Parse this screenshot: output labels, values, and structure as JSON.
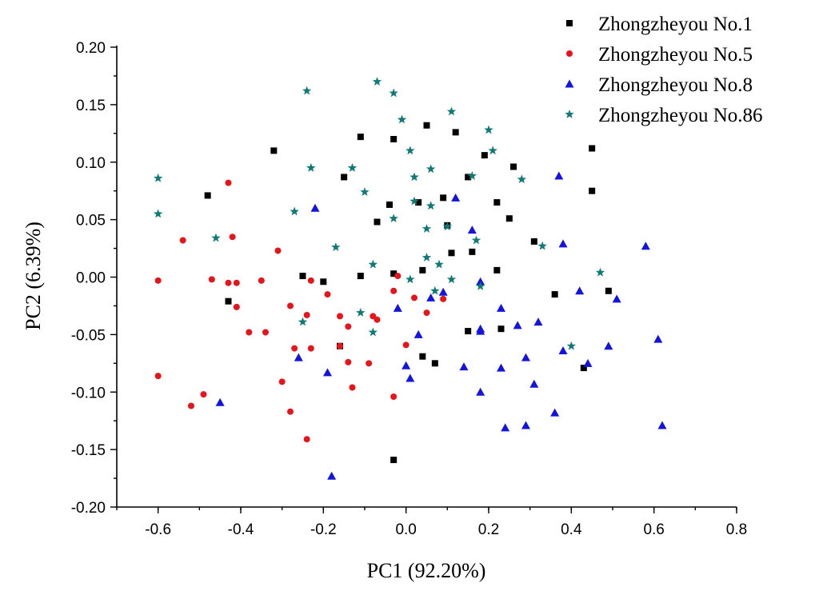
{
  "chart_data": {
    "type": "scatter",
    "xlabel": "PC1 (92.20%)",
    "ylabel": "PC2 (6.39%)",
    "xlim": [
      -0.7,
      0.8
    ],
    "ylim": [
      -0.2,
      0.2
    ],
    "xticks": [
      -0.6,
      -0.4,
      -0.2,
      0.0,
      0.2,
      0.4,
      0.6,
      0.8
    ],
    "xtick_labels": [
      "-0.6",
      "-0.4",
      "-0.2",
      "0.0",
      "0.2",
      "0.4",
      "0.6",
      "0.8"
    ],
    "yticks": [
      -0.2,
      -0.15,
      -0.1,
      -0.05,
      0.0,
      0.05,
      0.1,
      0.15,
      0.2
    ],
    "ytick_labels": [
      "-0.20",
      "-0.15",
      "-0.10",
      "-0.05",
      "0.00",
      "0.05",
      "0.10",
      "0.15",
      "0.20"
    ],
    "grid": false,
    "legend_position": "top-right",
    "series": [
      {
        "name": "Zhongzheyou No.1",
        "marker": "square",
        "color": "#000000",
        "points": [
          [
            -0.48,
            0.071
          ],
          [
            -0.43,
            -0.021
          ],
          [
            -0.32,
            0.11
          ],
          [
            -0.25,
            0.001
          ],
          [
            -0.2,
            -0.004
          ],
          [
            -0.16,
            -0.06
          ],
          [
            -0.15,
            0.087
          ],
          [
            -0.11,
            0.001
          ],
          [
            -0.11,
            0.122
          ],
          [
            -0.07,
            0.048
          ],
          [
            -0.04,
            0.063
          ],
          [
            -0.03,
            0.12
          ],
          [
            -0.03,
            0.003
          ],
          [
            -0.03,
            -0.159
          ],
          [
            0.03,
            0.065
          ],
          [
            0.04,
            -0.069
          ],
          [
            0.04,
            0.006
          ],
          [
            0.05,
            0.132
          ],
          [
            0.07,
            -0.075
          ],
          [
            0.09,
            0.069
          ],
          [
            0.1,
            0.045
          ],
          [
            0.11,
            0.021
          ],
          [
            0.12,
            0.126
          ],
          [
            0.15,
            0.087
          ],
          [
            0.15,
            -0.047
          ],
          [
            0.16,
            0.022
          ],
          [
            0.19,
            0.106
          ],
          [
            0.22,
            0.065
          ],
          [
            0.22,
            0.006
          ],
          [
            0.23,
            -0.045
          ],
          [
            0.25,
            0.051
          ],
          [
            0.26,
            0.096
          ],
          [
            0.31,
            0.031
          ],
          [
            0.36,
            -0.015
          ],
          [
            0.43,
            -0.079
          ],
          [
            0.45,
            0.075
          ],
          [
            0.45,
            0.112
          ],
          [
            0.49,
            -0.012
          ]
        ]
      },
      {
        "name": "Zhongzheyou No.5",
        "marker": "circle",
        "color": "#e8141c",
        "points": [
          [
            -0.6,
            -0.003
          ],
          [
            -0.6,
            -0.086
          ],
          [
            -0.54,
            0.032
          ],
          [
            -0.52,
            -0.112
          ],
          [
            -0.49,
            -0.102
          ],
          [
            -0.47,
            -0.002
          ],
          [
            -0.43,
            -0.005
          ],
          [
            -0.43,
            0.082
          ],
          [
            -0.42,
            0.035
          ],
          [
            -0.41,
            -0.005
          ],
          [
            -0.41,
            -0.026
          ],
          [
            -0.38,
            -0.048
          ],
          [
            -0.35,
            -0.003
          ],
          [
            -0.34,
            -0.048
          ],
          [
            -0.31,
            0.023
          ],
          [
            -0.3,
            -0.091
          ],
          [
            -0.28,
            -0.025
          ],
          [
            -0.28,
            -0.117
          ],
          [
            -0.27,
            -0.062
          ],
          [
            -0.24,
            -0.033
          ],
          [
            -0.24,
            -0.141
          ],
          [
            -0.23,
            -0.003
          ],
          [
            -0.23,
            -0.062
          ],
          [
            -0.19,
            -0.015
          ],
          [
            -0.16,
            -0.034
          ],
          [
            -0.16,
            -0.06
          ],
          [
            -0.14,
            -0.043
          ],
          [
            -0.14,
            -0.074
          ],
          [
            -0.13,
            -0.096
          ],
          [
            -0.09,
            -0.075
          ],
          [
            -0.08,
            -0.034
          ],
          [
            -0.07,
            -0.037
          ],
          [
            -0.03,
            -0.012
          ],
          [
            -0.03,
            -0.104
          ],
          [
            -0.02,
            0.001
          ],
          [
            0.0,
            -0.059
          ],
          [
            0.02,
            -0.018
          ],
          [
            0.05,
            -0.031
          ],
          [
            0.09,
            -0.019
          ]
        ]
      },
      {
        "name": "Zhongzheyou No.8",
        "marker": "triangle",
        "color": "#1414e0",
        "points": [
          [
            -0.45,
            -0.109
          ],
          [
            -0.26,
            -0.07
          ],
          [
            -0.22,
            0.06
          ],
          [
            -0.19,
            -0.083
          ],
          [
            -0.18,
            -0.173
          ],
          [
            -0.02,
            -0.027
          ],
          [
            0.0,
            -0.077
          ],
          [
            0.01,
            -0.088
          ],
          [
            0.03,
            -0.05
          ],
          [
            0.06,
            -0.018
          ],
          [
            0.09,
            -0.013
          ],
          [
            0.12,
            0.069
          ],
          [
            0.14,
            -0.078
          ],
          [
            0.16,
            0.041
          ],
          [
            0.18,
            -0.045
          ],
          [
            0.18,
            -0.047
          ],
          [
            0.18,
            -0.1
          ],
          [
            0.18,
            -0.004
          ],
          [
            0.23,
            -0.027
          ],
          [
            0.23,
            -0.079
          ],
          [
            0.24,
            -0.131
          ],
          [
            0.27,
            -0.042
          ],
          [
            0.29,
            -0.07
          ],
          [
            0.29,
            -0.129
          ],
          [
            0.31,
            -0.093
          ],
          [
            0.32,
            -0.039
          ],
          [
            0.36,
            -0.118
          ],
          [
            0.37,
            0.088
          ],
          [
            0.38,
            0.029
          ],
          [
            0.38,
            -0.064
          ],
          [
            0.42,
            -0.012
          ],
          [
            0.44,
            -0.075
          ],
          [
            0.49,
            -0.06
          ],
          [
            0.51,
            -0.019
          ],
          [
            0.58,
            0.027
          ],
          [
            0.61,
            -0.054
          ],
          [
            0.62,
            -0.129
          ]
        ]
      },
      {
        "name": "Zhongzheyou No.86",
        "marker": "star",
        "color": "#0f7a76",
        "points": [
          [
            -0.6,
            0.086
          ],
          [
            -0.6,
            0.055
          ],
          [
            -0.46,
            0.034
          ],
          [
            -0.27,
            0.057
          ],
          [
            -0.25,
            -0.039
          ],
          [
            -0.24,
            0.162
          ],
          [
            -0.23,
            0.095
          ],
          [
            -0.17,
            0.026
          ],
          [
            -0.13,
            0.095
          ],
          [
            -0.11,
            -0.031
          ],
          [
            -0.1,
            0.074
          ],
          [
            -0.08,
            0.011
          ],
          [
            -0.08,
            -0.048
          ],
          [
            -0.07,
            0.17
          ],
          [
            -0.03,
            0.051
          ],
          [
            -0.03,
            0.16
          ],
          [
            -0.01,
            0.137
          ],
          [
            0.01,
            0.11
          ],
          [
            0.01,
            -0.002
          ],
          [
            0.02,
            0.066
          ],
          [
            0.02,
            0.087
          ],
          [
            0.05,
            0.042
          ],
          [
            0.05,
            0.017
          ],
          [
            0.06,
            0.094
          ],
          [
            0.06,
            0.062
          ],
          [
            0.07,
            -0.012
          ],
          [
            0.08,
            0.011
          ],
          [
            0.1,
            0.044
          ],
          [
            0.11,
            0.144
          ],
          [
            0.11,
            -0.002
          ],
          [
            0.16,
            0.088
          ],
          [
            0.17,
            0.032
          ],
          [
            0.18,
            -0.008
          ],
          [
            0.2,
            0.128
          ],
          [
            0.21,
            0.11
          ],
          [
            0.28,
            0.085
          ],
          [
            0.33,
            0.027
          ],
          [
            0.4,
            -0.06
          ],
          [
            0.47,
            0.004
          ]
        ]
      }
    ]
  }
}
